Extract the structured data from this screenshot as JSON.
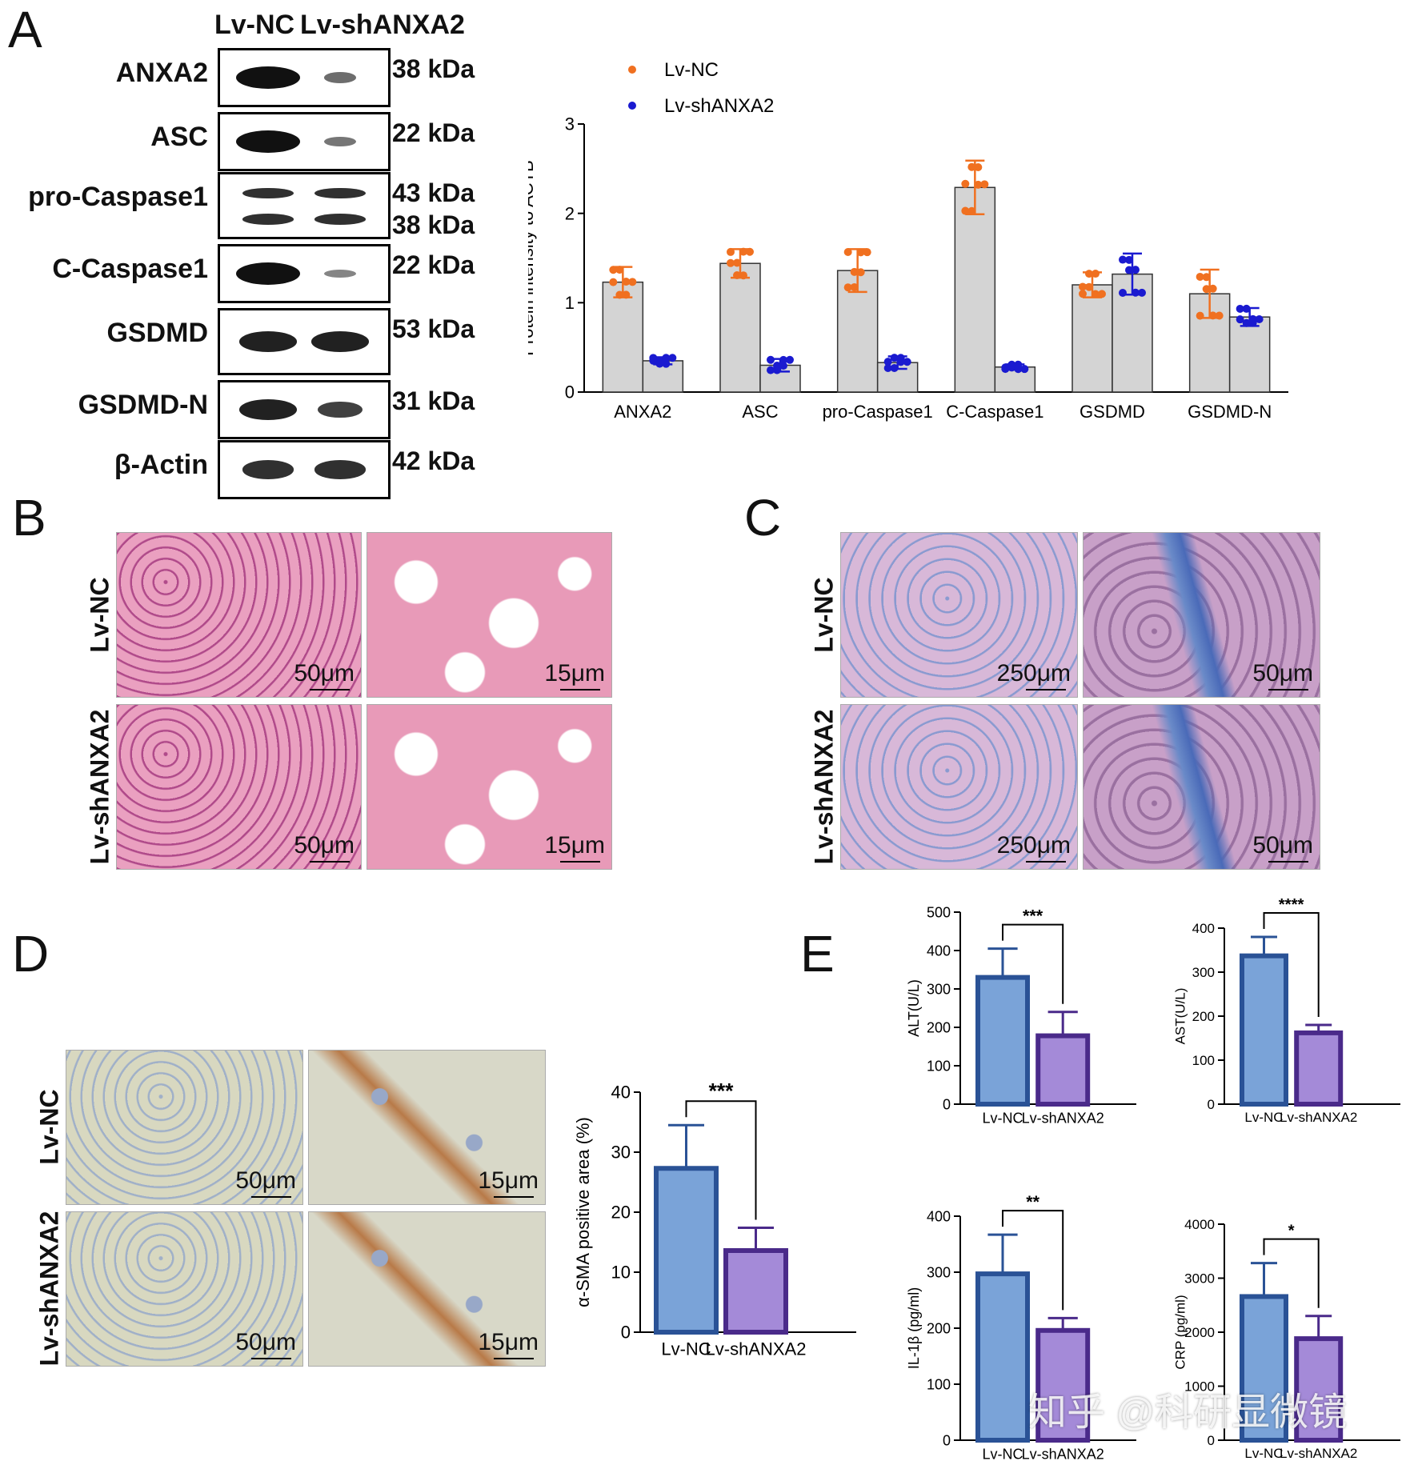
{
  "panels": {
    "A": "A",
    "B": "B",
    "C": "C",
    "D": "D",
    "E": "E"
  },
  "western": {
    "lanes": [
      "Lv-NC",
      "Lv-shANXA2"
    ],
    "rows": [
      {
        "name": "ANXA2",
        "kda": [
          "38 kDa"
        ],
        "nc": 1.0,
        "sh": 0.4
      },
      {
        "name": "ASC",
        "kda": [
          "22 kDa"
        ],
        "nc": 1.0,
        "sh": 0.35
      },
      {
        "name": "pro-Caspase1",
        "kda": [
          "43 kDa",
          "38 kDa"
        ],
        "nc": 0.8,
        "sh": 0.8
      },
      {
        "name": "C-Caspase1",
        "kda": [
          "22 kDa"
        ],
        "nc": 1.0,
        "sh": 0.25
      },
      {
        "name": "GSDMD",
        "kda": [
          "53 kDa"
        ],
        "nc": 0.9,
        "sh": 0.9
      },
      {
        "name": "GSDMD-N",
        "kda": [
          "31 kDa"
        ],
        "nc": 0.9,
        "sh": 0.7
      },
      {
        "name": "β-Actin",
        "kda": [
          "42 kDa"
        ],
        "nc": 0.8,
        "sh": 0.8
      }
    ]
  },
  "chart_data": [
    {
      "id": "A",
      "type": "bar",
      "ylabel": "Protein intensity to ACTB",
      "ylim": [
        0,
        3
      ],
      "yticks": [
        0,
        1,
        2,
        3
      ],
      "categories": [
        "ANXA2",
        "ASC",
        "pro-Caspase1",
        "C-Caspase1",
        "GSDMD",
        "GSDMD-N"
      ],
      "series": [
        {
          "name": "Lv-NC",
          "color": "#f07020",
          "values": [
            1.23,
            1.44,
            1.36,
            2.29,
            1.2,
            1.1
          ],
          "err": [
            0.17,
            0.16,
            0.24,
            0.3,
            0.14,
            0.27
          ]
        },
        {
          "name": "Lv-shANXA2",
          "color": "#1a1ad0",
          "values": [
            0.35,
            0.3,
            0.33,
            0.28,
            1.32,
            0.84
          ],
          "err": [
            0.04,
            0.07,
            0.07,
            0.03,
            0.23,
            0.1
          ]
        }
      ],
      "legend": "top-left"
    },
    {
      "id": "D",
      "type": "bar",
      "ylabel": "α-SMA positive area (%)",
      "ylim": [
        0,
        40
      ],
      "yticks": [
        0,
        10,
        20,
        30,
        40
      ],
      "categories": [
        "Lv-NC",
        "Lv-shANXA2"
      ],
      "values": [
        27.3,
        13.6
      ],
      "err": [
        7.2,
        3.8
      ],
      "sig": "***"
    },
    {
      "id": "E1",
      "type": "bar",
      "ylabel": "ALT(U/L)",
      "ylim": [
        0,
        500
      ],
      "yticks": [
        0,
        100,
        200,
        300,
        400,
        500
      ],
      "categories": [
        "Lv-NC",
        "Lv-shANXA2"
      ],
      "values": [
        330,
        178
      ],
      "err": [
        75,
        62
      ],
      "sig": "***"
    },
    {
      "id": "E2",
      "type": "bar",
      "ylabel": "AST(U/L)",
      "ylim": [
        0,
        400
      ],
      "yticks": [
        0,
        100,
        200,
        300,
        400
      ],
      "categories": [
        "Lv-NC",
        "Lv-shANXA2"
      ],
      "values": [
        337,
        162
      ],
      "err": [
        43,
        18
      ],
      "sig": "****"
    },
    {
      "id": "E3",
      "type": "bar",
      "ylabel": "IL-1β (pg/ml)",
      "ylim": [
        0,
        400
      ],
      "yticks": [
        0,
        100,
        200,
        300,
        400
      ],
      "categories": [
        "Lv-NC",
        "Lv-shANXA2"
      ],
      "values": [
        297,
        196
      ],
      "err": [
        70,
        22
      ],
      "sig": "**"
    },
    {
      "id": "E4",
      "type": "bar",
      "ylabel": "CRP (pg/ml)",
      "ylim": [
        0,
        4000
      ],
      "yticks": [
        0,
        1000,
        2000,
        3000,
        4000
      ],
      "categories": [
        "Lv-NC",
        "Lv-shANXA2"
      ],
      "values": [
        2660,
        1880
      ],
      "err": [
        620,
        420
      ],
      "sig": "*"
    }
  ],
  "histology": {
    "B": {
      "rows": [
        "Lv-NC",
        "Lv-shANXA2"
      ],
      "scales": [
        [
          "50μm",
          "15μm"
        ],
        [
          "50μm",
          "15μm"
        ]
      ]
    },
    "C": {
      "rows": [
        "Lv-NC",
        "Lv-shANXA2"
      ],
      "scales": [
        [
          "250μm",
          "50μm"
        ],
        [
          "250μm",
          "50μm"
        ]
      ]
    },
    "D": {
      "rows": [
        "Lv-NC",
        "Lv-shANXA2"
      ],
      "scales": [
        [
          "50μm",
          "15μm"
        ],
        [
          "50μm",
          "15μm"
        ]
      ]
    }
  },
  "colors": {
    "blue_fill": "#7aa3d8",
    "blue_edge": "#2a5296",
    "purple_fill": "#a48ad8",
    "purple_edge": "#4a2a8a",
    "he_pink": "#e89ab8",
    "masson": "#c8a8c8",
    "ihc": "#d8d8c8"
  },
  "watermark": "知乎 @科研显微镜"
}
